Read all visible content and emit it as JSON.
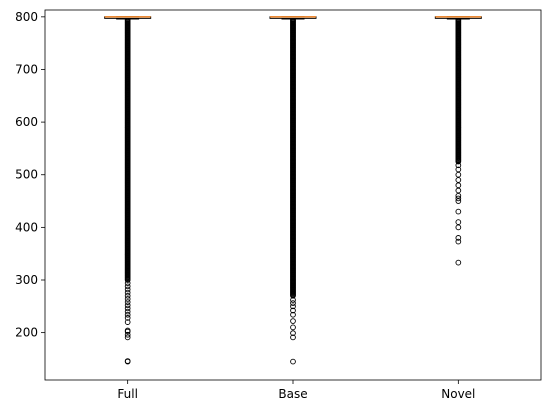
{
  "chart_data": {
    "type": "box",
    "title": "",
    "xlabel": "",
    "ylabel": "",
    "categories": [
      "Full",
      "Base",
      "Novel"
    ],
    "ylim": [
      110,
      813
    ],
    "y_ticks": [
      200,
      300,
      400,
      500,
      600,
      700,
      800
    ],
    "grid": false,
    "colors": {
      "box": "#000000",
      "median": "#ff7f0e",
      "flier": "#000000"
    },
    "boxes": [
      {
        "label": "Full",
        "whislo": 796,
        "q1": 798,
        "med": 800,
        "q3": 800,
        "whishi": 800,
        "outlier_range_dense": [
          300,
          796
        ],
        "fliers": [
          145,
          146,
          191,
          196,
          202,
          204,
          220,
          228,
          234,
          240,
          246,
          252,
          258,
          264,
          270,
          276,
          282,
          288,
          294
        ]
      },
      {
        "label": "Base",
        "whislo": 796,
        "q1": 798,
        "med": 800,
        "q3": 800,
        "whishi": 800,
        "outlier_range_dense": [
          270,
          796
        ],
        "fliers": [
          145,
          191,
          199,
          210,
          222,
          234,
          242,
          250,
          256,
          262
        ]
      },
      {
        "label": "Novel",
        "whislo": 796,
        "q1": 798,
        "med": 800,
        "q3": 800,
        "whishi": 800,
        "outlier_range_dense": [
          525,
          796
        ],
        "fliers": [
          333,
          373,
          380,
          400,
          410,
          430,
          450,
          455,
          460,
          470,
          480,
          490,
          500,
          510,
          518
        ]
      }
    ]
  }
}
